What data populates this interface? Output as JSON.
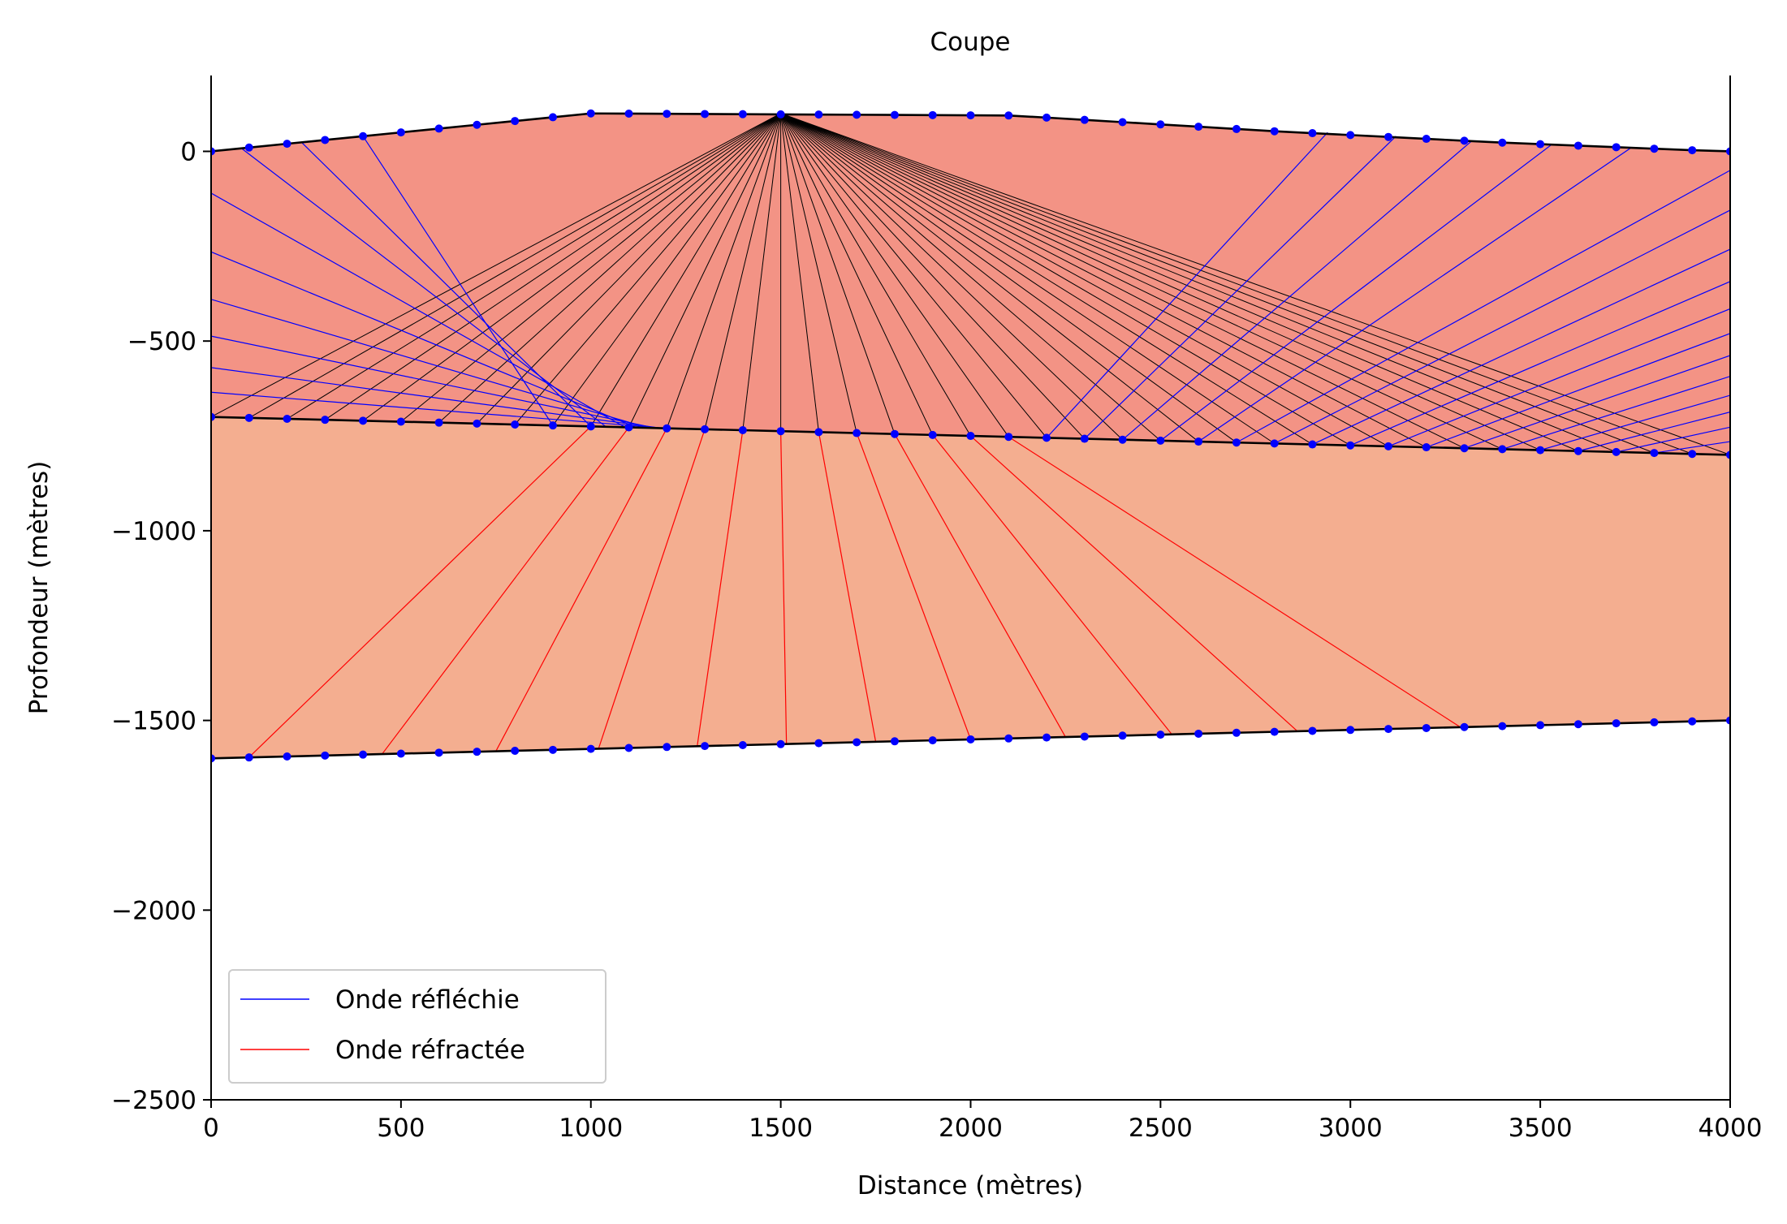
{
  "chart_data": {
    "type": "line",
    "title": "Coupe",
    "xlabel": "Distance (mètres)",
    "ylabel": "Profondeur (mètres)",
    "xlim": [
      0,
      4000
    ],
    "ylim": [
      -2500,
      200
    ],
    "xticks": [
      0,
      500,
      1000,
      1500,
      2000,
      2500,
      3000,
      3500,
      4000
    ],
    "yticks": [
      0,
      -500,
      -1000,
      -1500,
      -2000,
      -2500
    ],
    "xtick_labels": [
      "0",
      "500",
      "1000",
      "1500",
      "2000",
      "2500",
      "3000",
      "3500",
      "4000"
    ],
    "ytick_labels": [
      "0",
      "−500",
      "−1000",
      "−1500",
      "−2000",
      "−2500"
    ],
    "grid": false,
    "legend_position": "lower-left",
    "legend": [
      {
        "label": "Onde réfléchie",
        "color": "#0000ff"
      },
      {
        "label": "Onde réfractée",
        "color": "#ff0000"
      }
    ],
    "colors": {
      "layer1_fill": "#f39385",
      "layer2_fill": "#f4ae90",
      "interface": "#000000",
      "points": "#0000ff",
      "incident_rays": "#000000",
      "reflected_rays": "#0000ff",
      "refracted_rays": "#ff0000"
    },
    "source": {
      "x": 1500,
      "y": 100
    },
    "surface": {
      "x": [
        0,
        100,
        200,
        300,
        400,
        500,
        600,
        700,
        800,
        900,
        1000,
        1100,
        1200,
        1300,
        1400,
        1500,
        1600,
        1700,
        1800,
        1900,
        2000,
        2100,
        2200,
        2300,
        2400,
        2500,
        2600,
        2700,
        2800,
        2900,
        3000,
        3100,
        3200,
        3300,
        3400,
        3500,
        3600,
        3700,
        3800,
        3900,
        4000
      ],
      "y": [
        0,
        10,
        20,
        30,
        40,
        50,
        60,
        70,
        80,
        90,
        100,
        99.5,
        99,
        98.5,
        98,
        97.5,
        97,
        96.5,
        96,
        95.5,
        95,
        94.5,
        89,
        83,
        77,
        71,
        65,
        59,
        53,
        48,
        43,
        38,
        33,
        28,
        23,
        19,
        15,
        11,
        7,
        3,
        0
      ]
    },
    "interface1": {
      "x": [
        0,
        4000
      ],
      "y": [
        -700,
        -800
      ]
    },
    "interface2": {
      "x": [
        0,
        4000
      ],
      "y": [
        -1600,
        -1500
      ]
    },
    "reflected_rays": [
      {
        "from": [
          900,
          -722.5
        ],
        "to": [
          400,
          40
        ]
      },
      {
        "from": [
          1000,
          -725
        ],
        "to": [
          240,
          22
        ]
      },
      {
        "from": [
          1040,
          -726
        ],
        "to": [
          80,
          8
        ]
      },
      {
        "from": [
          1090,
          -727.3
        ],
        "to": [
          0,
          -110
        ]
      },
      {
        "from": [
          1120,
          -728
        ],
        "to": [
          0,
          -265
        ]
      },
      {
        "from": [
          1150,
          -728.8
        ],
        "to": [
          0,
          -390
        ]
      },
      {
        "from": [
          1170,
          -729.3
        ],
        "to": [
          0,
          -487
        ]
      },
      {
        "from": [
          1185,
          -729.6
        ],
        "to": [
          0,
          -570
        ]
      },
      {
        "from": [
          1200,
          -730
        ],
        "to": [
          0,
          -635
        ]
      },
      {
        "from": [
          2200,
          -755
        ],
        "to": [
          2940,
          50
        ]
      },
      {
        "from": [
          2300,
          -757.5
        ],
        "to": [
          3120,
          40
        ]
      },
      {
        "from": [
          2400,
          -760
        ],
        "to": [
          3320,
          28
        ]
      },
      {
        "from": [
          2500,
          -762.5
        ],
        "to": [
          3530,
          18
        ]
      },
      {
        "from": [
          2600,
          -765
        ],
        "to": [
          3740,
          10
        ]
      },
      {
        "from": [
          2700,
          -767.5
        ],
        "to": [
          4000,
          -50
        ]
      },
      {
        "from": [
          2800,
          -770
        ],
        "to": [
          4000,
          -155
        ]
      },
      {
        "from": [
          2900,
          -772.5
        ],
        "to": [
          4000,
          -258
        ]
      },
      {
        "from": [
          3000,
          -775
        ],
        "to": [
          4000,
          -343
        ]
      },
      {
        "from": [
          3100,
          -777.5
        ],
        "to": [
          4000,
          -415
        ]
      },
      {
        "from": [
          3200,
          -780
        ],
        "to": [
          4000,
          -480
        ]
      },
      {
        "from": [
          3300,
          -782.5
        ],
        "to": [
          4000,
          -538
        ]
      },
      {
        "from": [
          3400,
          -785
        ],
        "to": [
          4000,
          -593
        ]
      },
      {
        "from": [
          3500,
          -787.5
        ],
        "to": [
          4000,
          -643
        ]
      },
      {
        "from": [
          3600,
          -790
        ],
        "to": [
          4000,
          -687
        ]
      },
      {
        "from": [
          3700,
          -792.5
        ],
        "to": [
          4000,
          -727
        ]
      },
      {
        "from": [
          3800,
          -795
        ],
        "to": [
          4000,
          -765
        ]
      }
    ],
    "refracted_rays": [
      {
        "from": [
          1000,
          -725
        ],
        "to": [
          100,
          -1597
        ]
      },
      {
        "from": [
          1100,
          -727.5
        ],
        "to": [
          450,
          -1589
        ]
      },
      {
        "from": [
          1200,
          -730
        ],
        "to": [
          750,
          -1581
        ]
      },
      {
        "from": [
          1300,
          -732.5
        ],
        "to": [
          1020,
          -1575
        ]
      },
      {
        "from": [
          1400,
          -735
        ],
        "to": [
          1280,
          -1568
        ]
      },
      {
        "from": [
          1500,
          -737.5
        ],
        "to": [
          1515,
          -1562
        ]
      },
      {
        "from": [
          1600,
          -740
        ],
        "to": [
          1750,
          -1556
        ]
      },
      {
        "from": [
          1700,
          -742.5
        ],
        "to": [
          2000,
          -1550
        ]
      },
      {
        "from": [
          1800,
          -745
        ],
        "to": [
          2250,
          -1544
        ]
      },
      {
        "from": [
          1900,
          -747.5
        ],
        "to": [
          2530,
          -1537
        ]
      },
      {
        "from": [
          2000,
          -750
        ],
        "to": [
          2860,
          -1528
        ]
      },
      {
        "from": [
          2100,
          -752.5
        ],
        "to": [
          3290,
          -1518
        ]
      }
    ]
  }
}
